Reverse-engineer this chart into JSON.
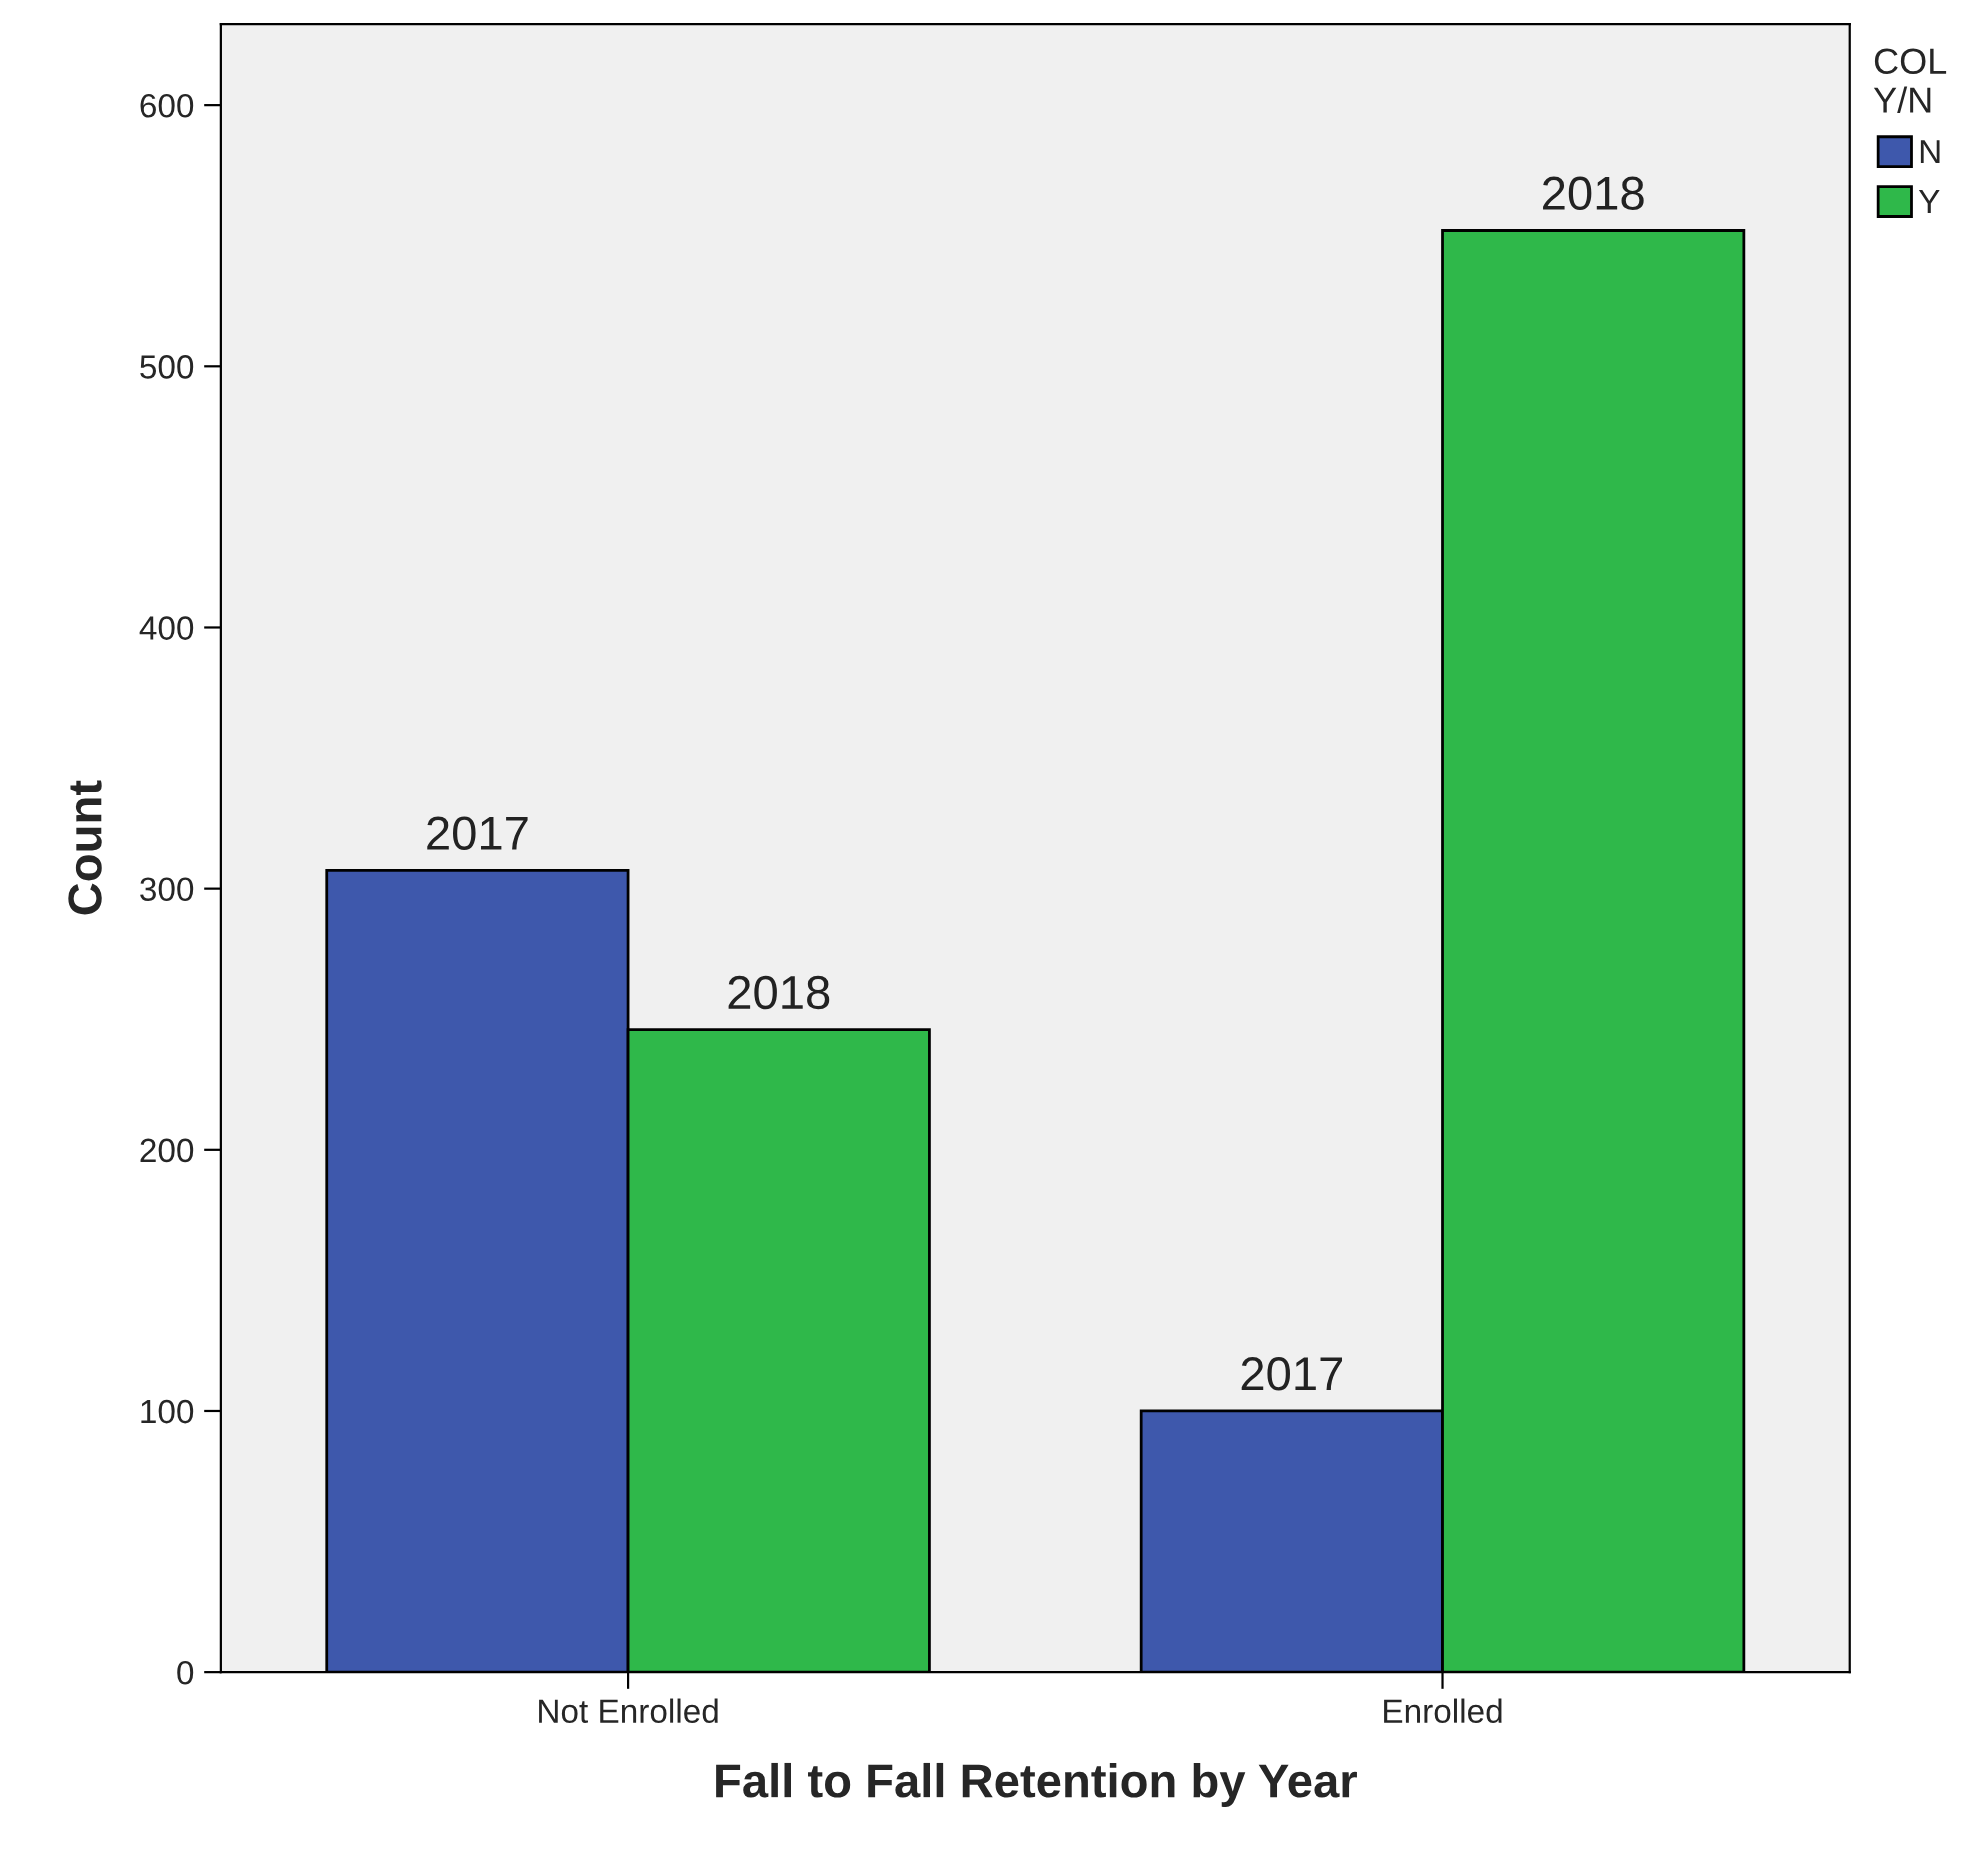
{
  "chart_data": {
    "type": "bar",
    "xlabel": "Fall to Fall Retention by Year",
    "ylabel": "Count",
    "legend_title": "COL\nY/N",
    "categories": [
      "Not Enrolled",
      "Enrolled"
    ],
    "series": [
      {
        "name": "N",
        "color": "#3e58ac",
        "values": [
          307,
          100
        ]
      },
      {
        "name": "Y",
        "color": "#2fb84a",
        "values": [
          246,
          552
        ]
      }
    ],
    "annotations": [
      {
        "text": "2017",
        "x": "Not Enrolled",
        "y": 307
      },
      {
        "text": "2018",
        "x": "Not Enrolled",
        "y": 246
      },
      {
        "text": "2017",
        "x": "Enrolled",
        "y": 100
      },
      {
        "text": "2018",
        "x": "Enrolled",
        "y": 552
      }
    ],
    "ylim": [
      0,
      631
    ],
    "yticks": [
      0,
      100,
      200,
      300,
      400,
      500,
      600
    ],
    "grid": false,
    "legend": "top right"
  }
}
